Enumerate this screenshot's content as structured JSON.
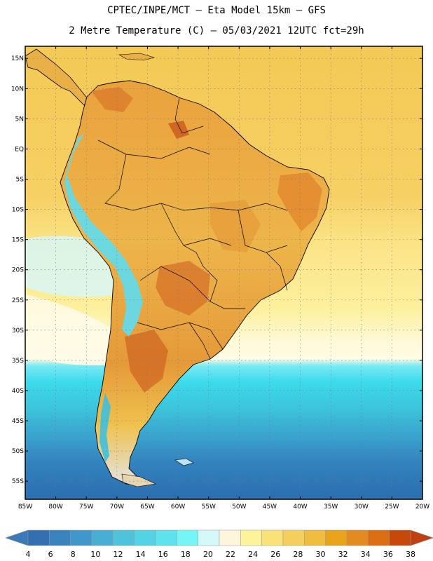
{
  "header": {
    "line1": "CPTEC/INPE/MCT –  Eta Model 15km – GFS",
    "line2": "2 Metre Temperature (C) – 05/03/2021 12UTC fct=29h"
  },
  "map": {
    "lon_range": [
      -85,
      -20
    ],
    "lat_range": [
      -58,
      17
    ],
    "lat_ticks": [
      {
        "value": 15,
        "label": "15N"
      },
      {
        "value": 10,
        "label": "10N"
      },
      {
        "value": 5,
        "label": "5N"
      },
      {
        "value": 0,
        "label": "EQ"
      },
      {
        "value": -5,
        "label": "5S"
      },
      {
        "value": -10,
        "label": "10S"
      },
      {
        "value": -15,
        "label": "15S"
      },
      {
        "value": -20,
        "label": "20S"
      },
      {
        "value": -25,
        "label": "25S"
      },
      {
        "value": -30,
        "label": "30S"
      },
      {
        "value": -35,
        "label": "35S"
      },
      {
        "value": -40,
        "label": "40S"
      },
      {
        "value": -45,
        "label": "45S"
      },
      {
        "value": -50,
        "label": "50S"
      },
      {
        "value": -55,
        "label": "55S"
      }
    ],
    "lon_ticks": [
      {
        "value": -85,
        "label": "85W"
      },
      {
        "value": -80,
        "label": "80W"
      },
      {
        "value": -75,
        "label": "75W"
      },
      {
        "value": -70,
        "label": "70W"
      },
      {
        "value": -65,
        "label": "65W"
      },
      {
        "value": -60,
        "label": "60W"
      },
      {
        "value": -55,
        "label": "55W"
      },
      {
        "value": -50,
        "label": "50W"
      },
      {
        "value": -45,
        "label": "45W"
      },
      {
        "value": -40,
        "label": "40W"
      },
      {
        "value": -35,
        "label": "35W"
      },
      {
        "value": -30,
        "label": "30W"
      },
      {
        "value": -25,
        "label": "25W"
      },
      {
        "value": -20,
        "label": "20W"
      }
    ],
    "colors": {
      "ocean_north": "#f5cd5a",
      "ocean_mid": "#fdf0a0",
      "ocean_cool": "#fffbe0",
      "cold_band": "#37d7ea",
      "south_ocean": "#2d78b7",
      "land": "#ebb34a",
      "land_hot": "#d97a2a",
      "andes_cold": "#5de0f0",
      "border": "#000000"
    }
  },
  "colorbar": {
    "ticks": [
      "4",
      "6",
      "8",
      "10",
      "12",
      "14",
      "16",
      "18",
      "20",
      "22",
      "24",
      "26",
      "28",
      "30",
      "32",
      "34",
      "36",
      "38"
    ],
    "low_arrow_color": "#3a7ab8",
    "high_arrow_color": "#c0400f",
    "colors": [
      "#3470b0",
      "#3a83bd",
      "#3f98c9",
      "#48aed3",
      "#4fc3dc",
      "#55d3e6",
      "#5ee2ee",
      "#75f5f5",
      "#d5f8fa",
      "#fdf6dc",
      "#fdf39a",
      "#f9e278",
      "#f5cf5d",
      "#efbd3f",
      "#e8a51c",
      "#e38a20",
      "#dc6d12",
      "#c5490b"
    ]
  }
}
